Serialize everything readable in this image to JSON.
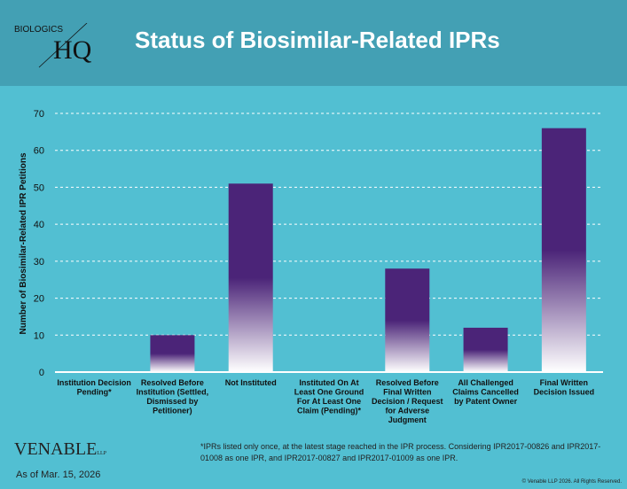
{
  "header": {
    "logo_top": "BIOLOGICS",
    "logo_main": "HQ",
    "title": "Status of Biosimilar-Related IPRs"
  },
  "chart_data": {
    "type": "bar",
    "title": "Status of Biosimilar-Related IPRs",
    "ylabel": "Number of Biosimilar-Related IPR Petitions",
    "xlabel": "",
    "ylim": [
      0,
      70
    ],
    "yticks": [
      0,
      10,
      20,
      30,
      40,
      50,
      60,
      70
    ],
    "grid": true,
    "categories": [
      "Institution Decision Pending*",
      "Resolved Before Institution (Settled, Dismissed by Petitioner)",
      "Not Instituted",
      "Instituted On At Least One Ground For At Least One Claim (Pending)*",
      "Resolved Before Final Written Decision / Request for Adverse Judgment",
      "All Challenged Claims Cancelled by Patent Owner",
      "Final Written Decision Issued"
    ],
    "values": [
      0,
      10,
      51,
      0,
      28,
      12,
      66
    ],
    "colors": {
      "bar_top": "#4b2478",
      "bar_bottom": "#ffffff"
    }
  },
  "footer": {
    "note": "*IPRs listed only once, at the latest stage reached in the IPR process.  Considering IPR2017-00826 and IPR2017-01008 as one IPR, and IPR2017-00827 and IPR2017-01009 as one IPR.",
    "brand": "VENABLE",
    "brand_suffix": "LLP",
    "as_of": "As of Mar. 15, 2026",
    "copyright": "© Venable LLP 2026. All Rights Reserved."
  }
}
